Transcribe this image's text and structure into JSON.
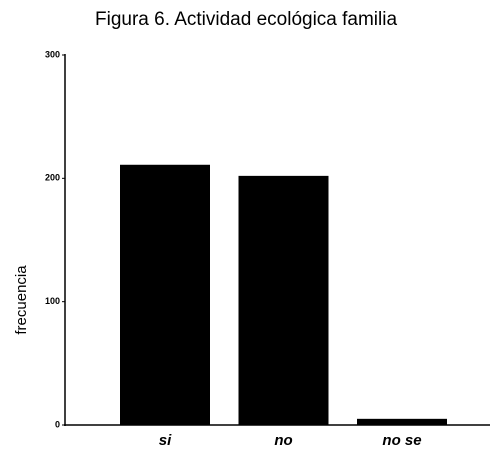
{
  "chart_data": {
    "type": "bar",
    "title": "Figura 6. Actividad ecológica familia",
    "y_label": "frecuencia",
    "categories": [
      "si",
      "no",
      "no se"
    ],
    "values": [
      211,
      202,
      5
    ],
    "color": "#000000",
    "ylim": [
      0,
      300
    ],
    "yticks": [
      0,
      100,
      200,
      300
    ]
  }
}
